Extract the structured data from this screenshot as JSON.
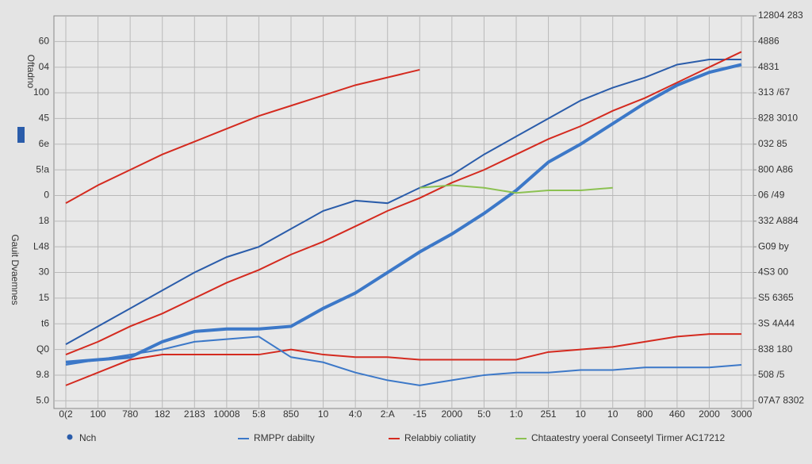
{
  "chart_data": {
    "type": "line",
    "y_label": "Gauit Dvaemnes",
    "y_label_2": "Oftadno",
    "categories": [
      "0(2",
      "100",
      "780",
      "182",
      "2183",
      "10008",
      "5:8",
      "850",
      "10",
      "4:0",
      "2:A",
      "-15",
      "2000",
      "5:0",
      "1:0",
      "251",
      "10",
      "10",
      "800",
      "460",
      "2000",
      "3000"
    ],
    "ylim": [
      -0.3,
      15
    ],
    "yticks": [
      {
        "value": 14,
        "label": "60"
      },
      {
        "value": 13,
        "label": "04"
      },
      {
        "value": 12,
        "label": "100"
      },
      {
        "value": 11,
        "label": "45"
      },
      {
        "value": 10,
        "label": "6e"
      },
      {
        "value": 9,
        "label": "5!a"
      },
      {
        "value": 8,
        "label": "0"
      },
      {
        "value": 7,
        "label": "18"
      },
      {
        "value": 6,
        "label": "L48"
      },
      {
        "value": 5,
        "label": "30"
      },
      {
        "value": 4,
        "label": "15"
      },
      {
        "value": 3,
        "label": "t6"
      },
      {
        "value": 2,
        "label": "Q0"
      },
      {
        "value": 1,
        "label": "9.8"
      },
      {
        "value": 0,
        "label": "5.0"
      }
    ],
    "y2lim": [
      -0.3,
      15
    ],
    "y2ticks": [
      {
        "value": 15,
        "label": "12804 283"
      },
      {
        "value": 14,
        "label": "4886"
      },
      {
        "value": 13,
        "label": "4831"
      },
      {
        "value": 12,
        "label": "313 /67"
      },
      {
        "value": 11,
        "label": "828 3010"
      },
      {
        "value": 10,
        "label": "032 85"
      },
      {
        "value": 9,
        "label": "800 A86"
      },
      {
        "value": 8,
        "label": "06 /49"
      },
      {
        "value": 7,
        "label": "332 A884"
      },
      {
        "value": 6,
        "label": "G09 by"
      },
      {
        "value": 5,
        "label": "4S3 00"
      },
      {
        "value": 4,
        "label": "S5 6365"
      },
      {
        "value": 3,
        "label": "3S 4A44"
      },
      {
        "value": 2,
        "label": "838 180"
      },
      {
        "value": 1,
        "label": "508 /5"
      },
      {
        "value": 0,
        "label": "07A7 8302"
      }
    ],
    "grid": true,
    "series": [
      {
        "name": "Nch",
        "color": "#2a5caa",
        "values": [
          2.2,
          2.9,
          3.6,
          4.3,
          5.0,
          5.6,
          6.0,
          6.7,
          7.4,
          7.8,
          7.7,
          8.3,
          8.8,
          9.6,
          10.3,
          11.0,
          11.7,
          12.2,
          12.6,
          13.1,
          13.3,
          13.3
        ]
      },
      {
        "name": "RMPPr dabilty",
        "color": "#3c78c8",
        "values": [
          1.5,
          1.6,
          1.7,
          2.3,
          2.7,
          2.8,
          2.8,
          2.9,
          3.6,
          4.2,
          5.0,
          5.8,
          6.5,
          7.3,
          8.2,
          9.3,
          10.0,
          10.8,
          11.6,
          12.3,
          12.8,
          13.1
        ]
      },
      {
        "name": "Relabbiy coliatity",
        "color": "#d42a1f",
        "values": [
          1.8,
          2.3,
          2.9,
          3.4,
          4.0,
          4.6,
          5.1,
          5.7,
          6.2,
          6.8,
          7.4,
          7.9,
          8.5,
          9.0,
          9.6,
          10.2,
          10.7,
          11.3,
          11.8,
          12.4,
          13.0,
          13.6
        ]
      },
      {
        "name": "Chtaatestry yoeral Conseetyl Tirmer AC17212",
        "color": "#8cc152",
        "values": [
          null,
          null,
          null,
          null,
          null,
          null,
          null,
          null,
          null,
          null,
          null,
          8.3,
          8.4,
          8.3,
          8.1,
          8.2,
          8.2,
          8.3,
          null,
          null,
          null,
          null
        ]
      }
    ],
    "extra_series": [
      {
        "color": "#d42a1f",
        "values": [
          7.7,
          8.4,
          9.0,
          9.6,
          10.1,
          10.6,
          11.1,
          11.5,
          11.9,
          12.3,
          12.6,
          12.9,
          null,
          null,
          null,
          null,
          null,
          null,
          null,
          null,
          null,
          null
        ]
      },
      {
        "color": "#d42a1f",
        "values": [
          0.6,
          1.1,
          1.6,
          1.8,
          1.8,
          1.8,
          1.8,
          2.0,
          1.8,
          1.7,
          1.7,
          1.6,
          1.6,
          1.6,
          1.6,
          1.9,
          2.0,
          2.1,
          2.3,
          2.5,
          2.6,
          2.6
        ]
      },
      {
        "color": "#3c78c8",
        "values": [
          1.4,
          1.6,
          1.8,
          2.0,
          2.3,
          2.4,
          2.5,
          1.7,
          1.5,
          1.1,
          0.8,
          0.6,
          0.8,
          1.0,
          1.1,
          1.1,
          1.2,
          1.2,
          1.3,
          1.3,
          1.3,
          1.4
        ]
      }
    ]
  }
}
